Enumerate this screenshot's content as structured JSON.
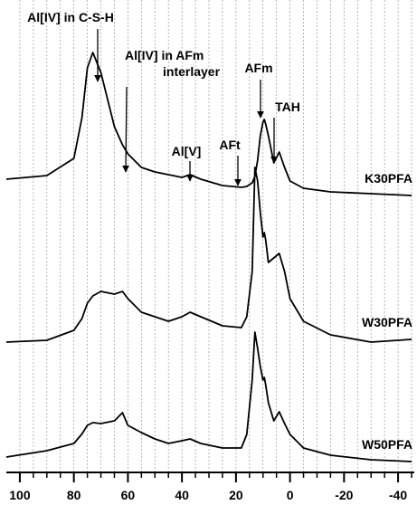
{
  "chart_data": {
    "type": "line",
    "annotations": [
      {
        "lines": [
          "Al[IV] in C-S-H"
        ]
      },
      {
        "lines": [
          "Al[IV] in AFm",
          "interlayer"
        ]
      },
      {
        "lines": [
          "Al[V]"
        ]
      },
      {
        "lines": [
          "AFt"
        ]
      },
      {
        "lines": [
          "AFm"
        ]
      },
      {
        "lines": [
          "TAH"
        ]
      }
    ],
    "x": [
      105,
      90,
      80,
      77,
      75,
      73,
      70,
      65,
      62,
      60,
      55,
      50,
      45,
      40,
      37,
      33,
      25,
      18,
      16,
      14,
      13,
      12,
      11,
      10,
      9.5,
      9,
      8,
      6,
      4,
      2,
      0,
      -5,
      -15,
      -30,
      -45
    ],
    "series": [
      {
        "name": "K30PFA",
        "color": "#000000",
        "values": [
          64.8,
          65.6,
          69.4,
          78.4,
          89.4,
          92.8,
          88.4,
          76.4,
          72.4,
          70.4,
          67.4,
          66.4,
          65.8,
          65.2,
          65.8,
          64.8,
          63.4,
          63,
          63.2,
          64,
          65.4,
          69,
          74.4,
          77.4,
          78,
          77,
          74.4,
          68.4,
          70.8,
          67.4,
          64.4,
          62.8,
          62,
          61.6,
          61.2
        ]
      },
      {
        "name": "W30PFA",
        "color": "#000000",
        "values": [
          28.8,
          29.2,
          31.4,
          34,
          37.4,
          39,
          40,
          39.4,
          40,
          38.4,
          35.4,
          34.4,
          33.4,
          34.4,
          35.4,
          34.4,
          32.4,
          32,
          34.4,
          44.4,
          67.4,
          64.4,
          57.4,
          52,
          53,
          51.4,
          46.4,
          47.4,
          48.4,
          44.4,
          38.4,
          33.4,
          30.4,
          28.8,
          29.4
        ]
      },
      {
        "name": "W50PFA",
        "color": "#000000",
        "values": [
          3.4,
          4.8,
          6.4,
          8.5,
          10.4,
          11,
          10.8,
          11.4,
          13.2,
          10.4,
          8.8,
          7.4,
          6.4,
          7,
          7.4,
          6.4,
          5.4,
          5.4,
          8.4,
          20.4,
          31,
          27.4,
          23.4,
          20.4,
          21,
          19.4,
          15.4,
          11.4,
          13.4,
          10.8,
          8.4,
          5.4,
          3.8,
          2.8,
          2.4
        ]
      }
    ],
    "xlim": [
      105,
      -46
    ],
    "xticks": [
      100,
      80,
      60,
      40,
      20,
      0,
      -20,
      -40
    ],
    "minor_xticks": [
      100,
      95,
      90,
      85,
      80,
      75,
      70,
      65,
      60,
      55,
      50,
      45,
      40,
      35,
      30,
      25,
      20,
      15,
      10,
      5,
      0,
      -5,
      -10,
      -15,
      -20,
      -25,
      -30,
      -35,
      -40,
      -45
    ],
    "ylim": [
      0,
      100
    ],
    "grid": true
  }
}
